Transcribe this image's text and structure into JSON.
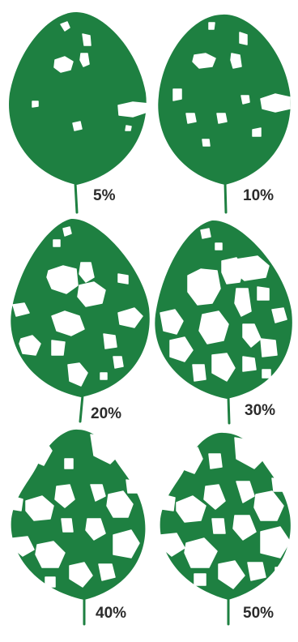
{
  "figure": {
    "leaf_color": "#1e8041",
    "hole_color": "#ffffff",
    "label_color": "#2b2b2b",
    "leaves": [
      {
        "label": "5%",
        "defoliation_percent": 5
      },
      {
        "label": "10%",
        "defoliation_percent": 10
      },
      {
        "label": "20%",
        "defoliation_percent": 20
      },
      {
        "label": "30%",
        "defoliation_percent": 30
      },
      {
        "label": "40%",
        "defoliation_percent": 40
      },
      {
        "label": "50%",
        "defoliation_percent": 50
      }
    ]
  }
}
